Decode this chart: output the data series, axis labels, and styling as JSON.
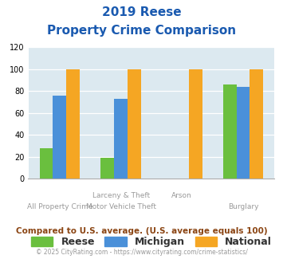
{
  "title_line1": "2019 Reese",
  "title_line2": "Property Crime Comparison",
  "top_labels": [
    "",
    "Larceny & Theft",
    "Arson",
    ""
  ],
  "bot_labels": [
    "All Property Crime",
    "Motor Vehicle Theft",
    "",
    "Burglary"
  ],
  "reese": [
    28,
    19,
    0,
    86
  ],
  "michigan": [
    76,
    73,
    0,
    84
  ],
  "national": [
    100,
    100,
    100,
    100
  ],
  "reese_color": "#6abf3e",
  "michigan_color": "#4a90d9",
  "national_color": "#f5a623",
  "bg_color": "#dce9f0",
  "title_color": "#1a5ab0",
  "label_color": "#999999",
  "ylim": [
    0,
    120
  ],
  "yticks": [
    0,
    20,
    40,
    60,
    80,
    100,
    120
  ],
  "footer_text": "Compared to U.S. average. (U.S. average equals 100)",
  "copyright_text": "© 2025 CityRating.com - https://www.cityrating.com/crime-statistics/",
  "footer_color": "#8B4513",
  "copyright_color": "#999999"
}
